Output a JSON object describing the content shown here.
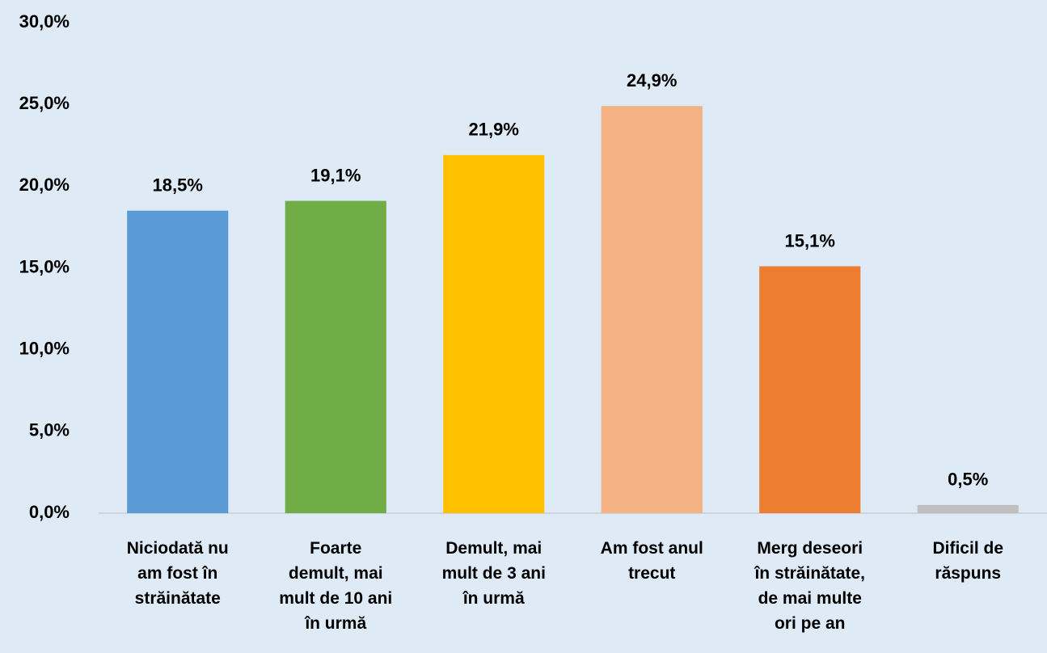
{
  "chart_data": {
    "type": "bar",
    "categories": [
      "Niciodată nu\nam fost în\nstrăinătate",
      "Foarte\ndemult, mai\nmult de 10 ani\nîn urmă",
      "Demult, mai\nmult de 3 ani\nîn urmă",
      "Am fost anul\ntrecut",
      "Merg deseori\nîn străinătate,\nde mai multe\nori pe an",
      "Dificil de\nrăspuns"
    ],
    "values": [
      18.5,
      19.1,
      21.9,
      24.9,
      15.1,
      0.5
    ],
    "value_labels": [
      "18,5%",
      "19,1%",
      "21,9%",
      "24,9%",
      "15,1%",
      "0,5%"
    ],
    "colors": [
      "#5b9bd5",
      "#70ad47",
      "#ffc000",
      "#f4b183",
      "#ed7d31",
      "#bfbfbf"
    ],
    "ylim": [
      0,
      30
    ],
    "yticks": [
      {
        "value": 0,
        "label": "0,0%"
      },
      {
        "value": 5,
        "label": "5,0%"
      },
      {
        "value": 10,
        "label": "10,0%"
      },
      {
        "value": 15,
        "label": "15,0%"
      },
      {
        "value": 20,
        "label": "20,0%"
      },
      {
        "value": 25,
        "label": "25,0%"
      },
      {
        "value": 30,
        "label": "30,0%"
      }
    ],
    "grid": false
  }
}
